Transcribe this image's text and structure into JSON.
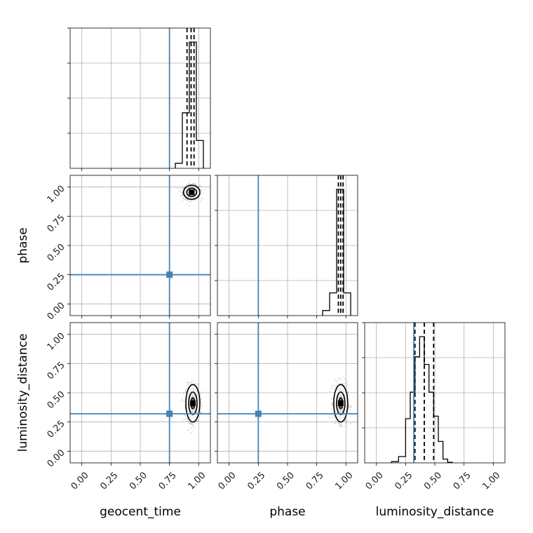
{
  "chart_data": {
    "type": "corner",
    "parameters": [
      "geocent_time",
      "phase",
      "luminosity_distance"
    ],
    "axis_range": [
      -0.1,
      1.1
    ],
    "tick_labels": [
      "0.00",
      "0.25",
      "0.50",
      "0.75",
      "1.00"
    ],
    "tick_values": [
      0.0,
      0.25,
      0.5,
      0.75,
      1.0
    ],
    "grid": true,
    "truth_color": "#4682b4",
    "truths": {
      "geocent_time": 0.75,
      "phase": 0.25,
      "luminosity_distance": 0.32
    },
    "quantile_color": "#000000",
    "histograms": [
      {
        "parameter": "geocent_time",
        "bin_edges": [
          0.8,
          0.86,
          0.92,
          0.98,
          1.04
        ],
        "counts": [
          0.04,
          0.44,
          1.0,
          0.22
        ],
        "quantiles": [
          0.9,
          0.935,
          0.96
        ]
      },
      {
        "parameter": "phase",
        "bin_edges": [
          0.8,
          0.86,
          0.92,
          0.98,
          1.04
        ],
        "counts": [
          0.04,
          0.18,
          1.0,
          0.18
        ],
        "quantiles": [
          0.935,
          0.955,
          0.975
        ]
      },
      {
        "parameter": "luminosity_distance",
        "bin_edges": [
          0.13,
          0.19,
          0.25,
          0.29,
          0.33,
          0.37,
          0.41,
          0.45,
          0.49,
          0.53,
          0.57,
          0.61,
          0.65
        ],
        "counts": [
          0.01,
          0.05,
          0.35,
          0.56,
          0.84,
          1.0,
          0.78,
          0.56,
          0.37,
          0.17,
          0.03,
          0.005
        ],
        "quantiles": [
          0.33,
          0.41,
          0.49
        ]
      }
    ],
    "scatter_panels": [
      {
        "x": "geocent_time",
        "y": "phase",
        "center": [
          0.94,
          0.955
        ],
        "spread": [
          0.035,
          0.03
        ]
      },
      {
        "x": "geocent_time",
        "y": "luminosity_distance",
        "center": [
          0.95,
          0.41
        ],
        "spread": [
          0.03,
          0.08
        ]
      },
      {
        "x": "phase",
        "y": "luminosity_distance",
        "center": [
          0.955,
          0.41
        ],
        "spread": [
          0.03,
          0.08
        ]
      }
    ]
  }
}
